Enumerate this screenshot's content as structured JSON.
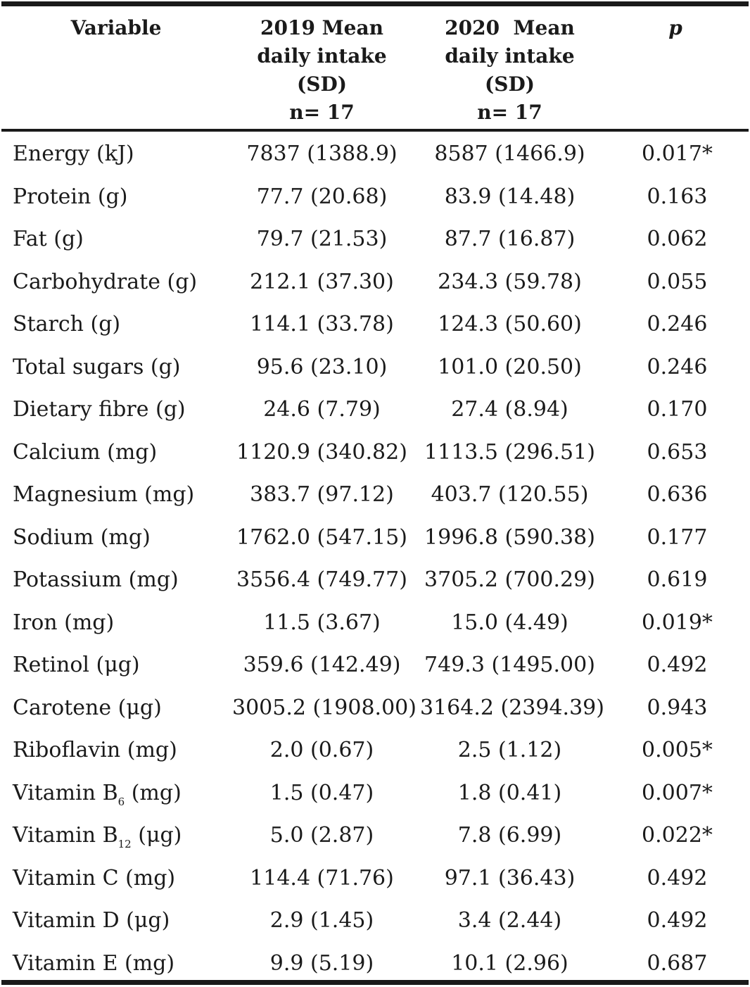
{
  "header": {
    "variable": "Variable",
    "col2019": [
      "2019 Mean",
      "daily intake",
      "(SD)",
      "n= 17"
    ],
    "col2020": [
      "2020  Mean",
      "daily intake",
      "(SD)",
      "n= 17"
    ],
    "p": "p"
  },
  "rows": [
    {
      "variable": "Energy (kJ)",
      "v2019": "7837 (1388.9)",
      "v2020": "8587 (1466.9)",
      "p": "0.017*"
    },
    {
      "variable": "Protein (g)",
      "v2019": "77.7 (20.68)",
      "v2020": "83.9 (14.48)",
      "p": "0.163"
    },
    {
      "variable": "Fat (g)",
      "v2019": "79.7 (21.53)",
      "v2020": "87.7 (16.87)",
      "p": "0.062"
    },
    {
      "variable": "Carbohydrate (g)",
      "v2019": "212.1 (37.30)",
      "v2020": "234.3 (59.78)",
      "p": "0.055"
    },
    {
      "variable": "Starch (g)",
      "v2019": "114.1 (33.78)",
      "v2020": "124.3 (50.60)",
      "p": "0.246"
    },
    {
      "variable": "Total sugars (g)",
      "v2019": "95.6 (23.10)",
      "v2020": "101.0 (20.50)",
      "p": "0.246"
    },
    {
      "variable": "Dietary fibre (g)",
      "v2019": "24.6 (7.79)",
      "v2020": "27.4 (8.94)",
      "p": "0.170"
    },
    {
      "variable": "Calcium (mg)",
      "v2019": "1120.9 (340.82)",
      "v2020": "1113.5 (296.51)",
      "p": "0.653"
    },
    {
      "variable": "Magnesium (mg)",
      "v2019": "383.7 (97.12)",
      "v2020": "403.7 (120.55)",
      "p": "0.636"
    },
    {
      "variable": "Sodium (mg)",
      "v2019": "1762.0 (547.15)",
      "v2020": "1996.8 (590.38)",
      "p": "0.177"
    },
    {
      "variable": "Potassium (mg)",
      "v2019": "3556.4 (749.77)",
      "v2020": "3705.2 (700.29)",
      "p": "0.619"
    },
    {
      "variable": "Iron (mg)",
      "v2019": "11.5 (3.67)",
      "v2020": "15.0 (4.49)",
      "p": "0.019*"
    },
    {
      "variable": "Retinol (μg)",
      "v2019": "359.6 (142.49)",
      "v2020": "749.3 (1495.00)",
      "p": "0.492"
    },
    {
      "variable": "Carotene (μg)",
      "v2019": "3005.2 (1908.00)",
      "v2020": "3164.2 (2394.39)",
      "p": "0.943"
    },
    {
      "variable": "Riboflavin (mg)",
      "v2019": "2.0 (0.67)",
      "v2020": "2.5 (1.12)",
      "p": "0.005*"
    },
    {
      "variable_pre": "Vitamin B",
      "variable_sub": "6",
      "variable_post": " (mg)",
      "v2019": "1.5 (0.47)",
      "v2020": "1.8 (0.41)",
      "p": "0.007*"
    },
    {
      "variable_pre": "Vitamin B",
      "variable_sub": "12",
      "variable_post": " (μg)",
      "v2019": "5.0 (2.87)",
      "v2020": "7.8 (6.99)",
      "p": "0.022*"
    },
    {
      "variable": "Vitamin C (mg)",
      "v2019": "114.4 (71.76)",
      "v2020": "97.1 (36.43)",
      "p": "0.492"
    },
    {
      "variable": "Vitamin D (μg)",
      "v2019": "2.9 (1.45)",
      "v2020": "3.4 (2.44)",
      "p": "0.492"
    },
    {
      "variable": "Vitamin E (mg)",
      "v2019": "9.9 (5.19)",
      "v2020": "10.1 (2.96)",
      "p": "0.687"
    }
  ]
}
